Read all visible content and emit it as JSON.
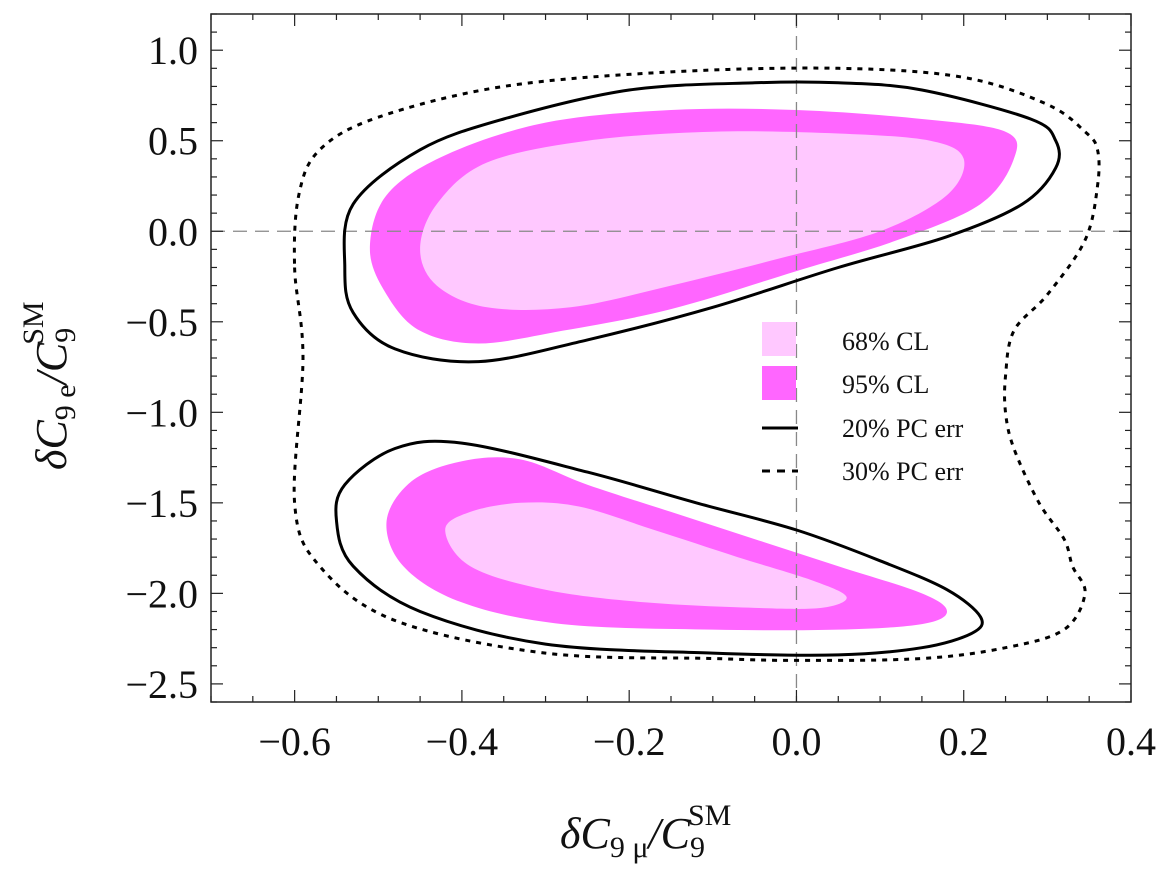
{
  "chart_data": {
    "type": "contour",
    "xlabel": "δC9 μ/C9SM",
    "ylabel": "δC9 e/C9SM",
    "xlabel_parts": {
      "prefix": "δC",
      "sub": "9 μ",
      "slash": "/C",
      "sub2": "9",
      "sup": "SM"
    },
    "ylabel_parts": {
      "prefix": "δC",
      "sub": "9 e",
      "slash": "/C",
      "sub2": "9",
      "sup": "SM"
    },
    "xlim": [
      -0.7,
      0.4
    ],
    "ylim": [
      -2.6,
      1.2
    ],
    "xticks": [
      -0.6,
      -0.4,
      -0.2,
      0.0,
      0.2,
      0.4
    ],
    "xtick_labels": [
      "−0.6",
      "−0.4",
      "−0.2",
      "0.0",
      "0.2",
      "0.4"
    ],
    "yticks": [
      1.0,
      0.5,
      0.0,
      -0.5,
      -1.0,
      -1.5,
      -2.0,
      -2.5
    ],
    "ytick_labels": [
      "1.0",
      "0.5",
      "0.0",
      "−0.5",
      "−1.0",
      "−1.5",
      "−2.0",
      "−2.5"
    ],
    "reference_lines": {
      "x": 0.0,
      "y": 0.0,
      "style": "dashed"
    },
    "legend": {
      "position": "right",
      "entries": [
        {
          "label": "68% CL",
          "kind": "fill",
          "color": "#ffc8ff"
        },
        {
          "label": "95% CL",
          "kind": "fill",
          "color": "#ff66ff"
        },
        {
          "label": "20% PC err",
          "kind": "line",
          "style": "solid",
          "color": "#000000"
        },
        {
          "label": "30% PC err",
          "kind": "line",
          "style": "dashed",
          "color": "#000000"
        }
      ]
    },
    "series": [
      {
        "name": "95% CL (upper)",
        "kind": "fill",
        "color": "#ff66ff",
        "points": [
          [
            -0.51,
            -0.1
          ],
          [
            -0.49,
            -0.35
          ],
          [
            -0.45,
            -0.55
          ],
          [
            -0.38,
            -0.62
          ],
          [
            -0.28,
            -0.55
          ],
          [
            -0.15,
            -0.43
          ],
          [
            0.0,
            -0.22
          ],
          [
            0.12,
            -0.05
          ],
          [
            0.22,
            0.15
          ],
          [
            0.26,
            0.4
          ],
          [
            0.25,
            0.55
          ],
          [
            0.15,
            0.62
          ],
          [
            0.0,
            0.67
          ],
          [
            -0.15,
            0.67
          ],
          [
            -0.3,
            0.6
          ],
          [
            -0.42,
            0.42
          ],
          [
            -0.49,
            0.2
          ]
        ]
      },
      {
        "name": "68% CL (upper)",
        "kind": "fill",
        "color": "#ffc8ff",
        "points": [
          [
            -0.45,
            -0.1
          ],
          [
            -0.43,
            -0.3
          ],
          [
            -0.37,
            -0.42
          ],
          [
            -0.27,
            -0.42
          ],
          [
            -0.15,
            -0.3
          ],
          [
            -0.02,
            -0.15
          ],
          [
            0.1,
            0.0
          ],
          [
            0.18,
            0.2
          ],
          [
            0.2,
            0.4
          ],
          [
            0.16,
            0.5
          ],
          [
            0.05,
            0.54
          ],
          [
            -0.1,
            0.55
          ],
          [
            -0.25,
            0.5
          ],
          [
            -0.37,
            0.38
          ],
          [
            -0.43,
            0.15
          ]
        ]
      },
      {
        "name": "95% CL (lower)",
        "kind": "fill",
        "color": "#ff66ff",
        "points": [
          [
            -0.49,
            -1.6
          ],
          [
            -0.47,
            -1.85
          ],
          [
            -0.4,
            -2.05
          ],
          [
            -0.28,
            -2.17
          ],
          [
            -0.1,
            -2.2
          ],
          [
            0.05,
            -2.2
          ],
          [
            0.15,
            -2.17
          ],
          [
            0.18,
            -2.1
          ],
          [
            0.15,
            -2.0
          ],
          [
            0.05,
            -1.85
          ],
          [
            -0.05,
            -1.7
          ],
          [
            -0.15,
            -1.55
          ],
          [
            -0.25,
            -1.4
          ],
          [
            -0.33,
            -1.26
          ],
          [
            -0.4,
            -1.27
          ],
          [
            -0.46,
            -1.38
          ]
        ]
      },
      {
        "name": "68% CL (lower)",
        "kind": "fill",
        "color": "#ffc8ff",
        "points": [
          [
            -0.42,
            -1.65
          ],
          [
            -0.39,
            -1.85
          ],
          [
            -0.3,
            -1.98
          ],
          [
            -0.18,
            -2.05
          ],
          [
            -0.05,
            -2.08
          ],
          [
            0.03,
            -2.08
          ],
          [
            0.06,
            -2.02
          ],
          [
            0.02,
            -1.93
          ],
          [
            -0.07,
            -1.8
          ],
          [
            -0.17,
            -1.65
          ],
          [
            -0.26,
            -1.52
          ],
          [
            -0.33,
            -1.5
          ],
          [
            -0.39,
            -1.55
          ]
        ]
      },
      {
        "name": "20% PC err (upper)",
        "kind": "line",
        "style": "solid",
        "color": "#000000",
        "points": [
          [
            -0.54,
            -0.2
          ],
          [
            -0.53,
            -0.45
          ],
          [
            -0.48,
            -0.65
          ],
          [
            -0.38,
            -0.72
          ],
          [
            -0.25,
            -0.6
          ],
          [
            -0.1,
            -0.42
          ],
          [
            0.05,
            -0.2
          ],
          [
            0.18,
            -0.03
          ],
          [
            0.27,
            0.15
          ],
          [
            0.31,
            0.35
          ],
          [
            0.31,
            0.5
          ],
          [
            0.28,
            0.62
          ],
          [
            0.15,
            0.78
          ],
          [
            0.05,
            0.82
          ],
          [
            -0.05,
            0.82
          ],
          [
            -0.2,
            0.78
          ],
          [
            -0.35,
            0.62
          ],
          [
            -0.45,
            0.45
          ],
          [
            -0.53,
            0.15
          ]
        ]
      },
      {
        "name": "20% PC err (lower)",
        "kind": "line",
        "style": "solid",
        "color": "#000000",
        "points": [
          [
            -0.55,
            -1.6
          ],
          [
            -0.53,
            -1.85
          ],
          [
            -0.45,
            -2.1
          ],
          [
            -0.3,
            -2.28
          ],
          [
            -0.1,
            -2.33
          ],
          [
            0.05,
            -2.34
          ],
          [
            0.15,
            -2.3
          ],
          [
            0.21,
            -2.22
          ],
          [
            0.22,
            -2.13
          ],
          [
            0.18,
            -1.98
          ],
          [
            0.1,
            -1.82
          ],
          [
            0.0,
            -1.65
          ],
          [
            -0.12,
            -1.5
          ],
          [
            -0.25,
            -1.33
          ],
          [
            -0.4,
            -1.17
          ],
          [
            -0.48,
            -1.2
          ],
          [
            -0.54,
            -1.4
          ]
        ]
      },
      {
        "name": "30% PC err",
        "kind": "line",
        "style": "dashed",
        "color": "#000000",
        "points": [
          [
            -0.6,
            -0.2
          ],
          [
            -0.59,
            -0.7
          ],
          [
            -0.6,
            -1.5
          ],
          [
            -0.57,
            -1.85
          ],
          [
            -0.48,
            -2.15
          ],
          [
            -0.3,
            -2.33
          ],
          [
            -0.1,
            -2.36
          ],
          [
            0.0,
            -2.37
          ],
          [
            0.15,
            -2.36
          ],
          [
            0.25,
            -2.3
          ],
          [
            0.32,
            -2.2
          ],
          [
            0.345,
            -2.0
          ],
          [
            0.33,
            -1.85
          ],
          [
            0.32,
            -1.7
          ],
          [
            0.29,
            -1.5
          ],
          [
            0.26,
            -1.2
          ],
          [
            0.25,
            -1.0
          ],
          [
            0.25,
            -0.8
          ],
          [
            0.26,
            -0.55
          ],
          [
            0.3,
            -0.35
          ],
          [
            0.345,
            -0.05
          ],
          [
            0.36,
            0.25
          ],
          [
            0.36,
            0.45
          ],
          [
            0.345,
            0.55
          ],
          [
            0.3,
            0.7
          ],
          [
            0.2,
            0.85
          ],
          [
            0.05,
            0.9
          ],
          [
            -0.15,
            0.88
          ],
          [
            -0.35,
            0.8
          ],
          [
            -0.5,
            0.63
          ],
          [
            -0.57,
            0.45
          ],
          [
            -0.595,
            0.2
          ]
        ]
      }
    ]
  }
}
